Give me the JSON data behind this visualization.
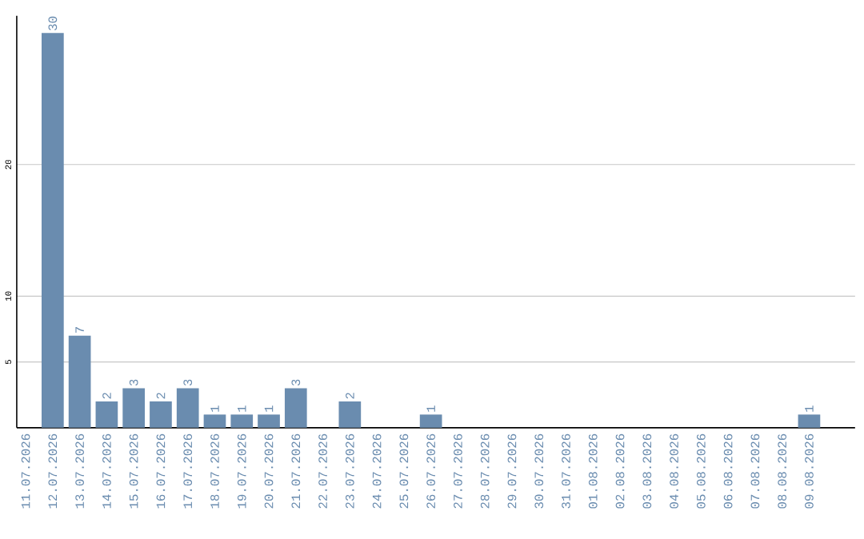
{
  "chart_data": {
    "type": "bar",
    "categories": [
      "11.07.2026",
      "12.07.2026",
      "13.07.2026",
      "14.07.2026",
      "15.07.2026",
      "16.07.2026",
      "17.07.2026",
      "18.07.2026",
      "19.07.2026",
      "20.07.2026",
      "21.07.2026",
      "22.07.2026",
      "23.07.2026",
      "24.07.2026",
      "25.07.2026",
      "26.07.2026",
      "27.07.2026",
      "28.07.2026",
      "29.07.2026",
      "30.07.2026",
      "31.07.2026",
      "01.08.2026",
      "02.08.2026",
      "03.08.2026",
      "04.08.2026",
      "05.08.2026",
      "06.08.2026",
      "07.08.2026",
      "08.08.2026",
      "09.08.2026"
    ],
    "values": [
      0,
      30,
      7,
      2,
      3,
      2,
      3,
      1,
      1,
      1,
      3,
      0,
      2,
      0,
      0,
      1,
      0,
      0,
      0,
      0,
      0,
      0,
      0,
      0,
      0,
      0,
      0,
      0,
      0,
      1
    ],
    "value_labels": [
      null,
      "30",
      "7",
      "2",
      "3",
      "2",
      "3",
      "1",
      "1",
      "1",
      "3",
      null,
      "2",
      null,
      null,
      "1",
      null,
      null,
      null,
      null,
      null,
      null,
      null,
      null,
      null,
      null,
      null,
      null,
      null,
      "1"
    ],
    "color": "#6a8caf",
    "ylim": [
      0,
      31.3
    ],
    "yticks": [
      5,
      10,
      20
    ],
    "grid": "y"
  }
}
